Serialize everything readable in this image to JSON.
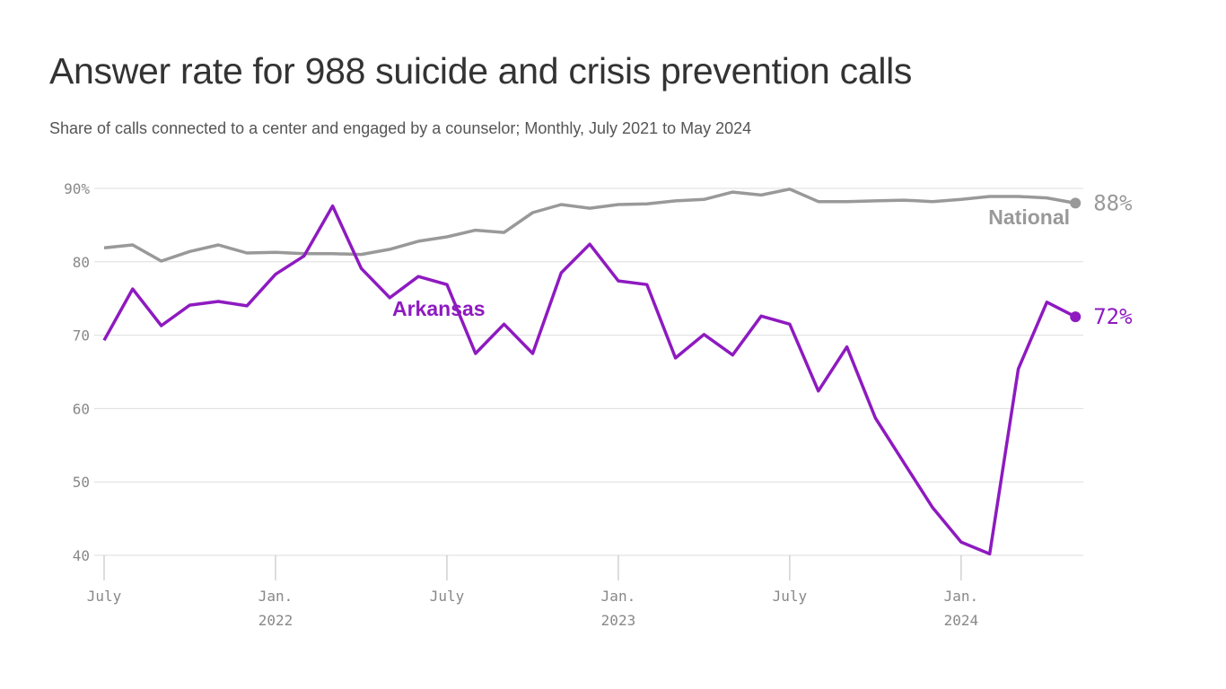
{
  "chart_data": {
    "type": "line",
    "title": "Answer rate for 988 suicide and crisis prevention calls",
    "subtitle": "Share of calls connected to a center and engaged by a counselor; Monthly, July 2021 to May 2024",
    "xlabel": "",
    "ylabel": "",
    "ylim": [
      40,
      90
    ],
    "y_ticks": [
      "90%",
      "80",
      "70",
      "60",
      "50",
      "40"
    ],
    "y_tick_values": [
      90,
      80,
      70,
      60,
      50,
      40
    ],
    "x_ticks": [
      {
        "label": "July",
        "year": "",
        "month_index": 0
      },
      {
        "label": "Jan.",
        "year": "2022",
        "month_index": 6
      },
      {
        "label": "July",
        "year": "",
        "month_index": 12
      },
      {
        "label": "Jan.",
        "year": "2023",
        "month_index": 18
      },
      {
        "label": "July",
        "year": "",
        "month_index": 24
      },
      {
        "label": "Jan.",
        "year": "2024",
        "month_index": 30
      }
    ],
    "x": [
      "2021-07",
      "2021-08",
      "2021-09",
      "2021-10",
      "2021-11",
      "2021-12",
      "2022-01",
      "2022-02",
      "2022-03",
      "2022-04",
      "2022-05",
      "2022-06",
      "2022-07",
      "2022-08",
      "2022-09",
      "2022-10",
      "2022-11",
      "2022-12",
      "2023-01",
      "2023-02",
      "2023-03",
      "2023-04",
      "2023-05",
      "2023-06",
      "2023-07",
      "2023-08",
      "2023-09",
      "2023-10",
      "2023-11",
      "2023-12",
      "2024-01",
      "2024-02",
      "2024-03",
      "2024-04",
      "2024-05"
    ],
    "grid": true,
    "legend": "none (direct labels)",
    "series": [
      {
        "name": "National",
        "color": "#999999",
        "end_label": "88%",
        "values": [
          81.9,
          82.3,
          80.1,
          81.4,
          82.3,
          81.2,
          81.3,
          81.1,
          81.1,
          81.0,
          81.7,
          82.8,
          83.4,
          84.3,
          84.0,
          86.7,
          87.8,
          87.3,
          87.8,
          87.9,
          88.3,
          88.5,
          89.5,
          89.1,
          89.9,
          88.2,
          88.2,
          88.3,
          88.4,
          88.2,
          88.5,
          88.9,
          88.9,
          88.7,
          88.0
        ]
      },
      {
        "name": "Arkansas",
        "color": "#8e1ac0",
        "end_label": "72%",
        "values": [
          69.3,
          76.3,
          71.3,
          74.1,
          74.6,
          74.0,
          78.3,
          80.8,
          87.6,
          79.1,
          75.1,
          78.0,
          76.9,
          67.5,
          71.5,
          67.5,
          78.5,
          82.4,
          77.4,
          76.9,
          66.9,
          70.1,
          67.3,
          72.6,
          71.5,
          62.4,
          68.4,
          58.7,
          52.6,
          46.5,
          41.8,
          40.2,
          65.4,
          74.5,
          72.5
        ]
      }
    ]
  }
}
